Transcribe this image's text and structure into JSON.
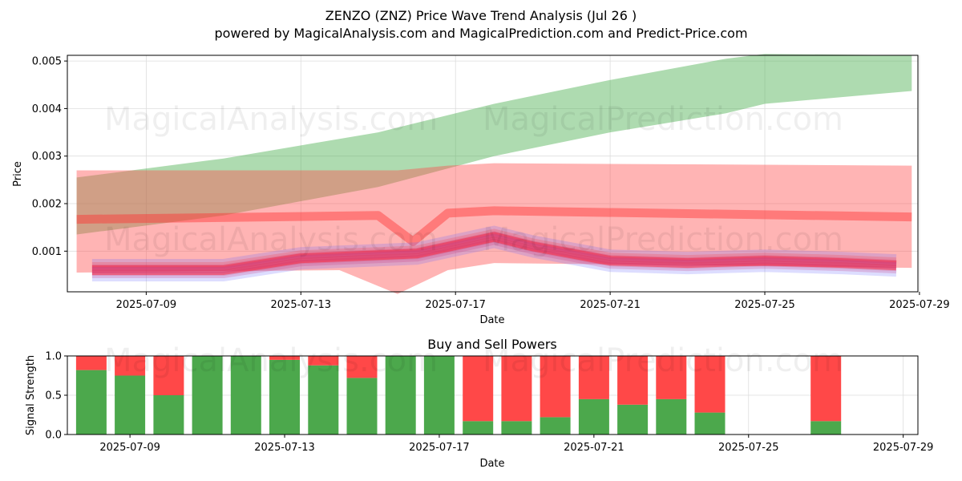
{
  "header": {
    "title": "ZENZO (ZNZ) Price Wave Trend Analysis (Jul 26 )",
    "subtitle": "powered by MagicalAnalysis.com and MagicalPrediction.com and Predict-Price.com"
  },
  "watermarks": [
    "MagicalAnalysis.com",
    "MagicalPrediction.com"
  ],
  "colors": {
    "upper_band": "#4caf50",
    "lower_band": "#ff4d4d",
    "wave_red": "#ff3333",
    "wave_blue": "#6666ff",
    "wave_magenta": "#dd2255",
    "buy": "#4ca84c",
    "sell": "#ff4848",
    "grid": "#dddddd"
  },
  "chart_data": [
    {
      "type": "area",
      "title": "",
      "xlabel": "Date",
      "ylabel": "Price",
      "x_ticks": [
        "2025-07-09",
        "2025-07-13",
        "2025-07-17",
        "2025-07-21",
        "2025-07-25",
        "2025-07-29"
      ],
      "y_ticks": [
        "0.001",
        "0.002",
        "0.003",
        "0.004",
        "0.005"
      ],
      "xlim": [
        "2025-07-06.96",
        "2025-07-28.96"
      ],
      "ylim": [
        0.000145,
        0.00512
      ],
      "grid": true,
      "series": [
        {
          "kind": "band",
          "color": "green",
          "x": [
            "2025-07-07.2",
            "2025-07-11",
            "2025-07-15",
            "2025-07-18",
            "2025-07-21",
            "2025-07-24",
            "2025-07-25",
            "2025-07-28.8"
          ],
          "upper": [
            0.00255,
            0.00295,
            0.0035,
            0.0041,
            0.0046,
            0.00505,
            0.00515,
            0.00512
          ],
          "lower": [
            0.00135,
            0.00175,
            0.00235,
            0.003,
            0.0035,
            0.0039,
            0.0041,
            0.00437
          ]
        },
        {
          "kind": "band",
          "color": "red",
          "x": [
            "2025-07-07.2",
            "2025-07-14",
            "2025-07-15.5",
            "2025-07-16.8",
            "2025-07-18",
            "2025-07-28.8"
          ],
          "upper": [
            0.0027,
            0.0027,
            0.0027,
            0.0028,
            0.00285,
            0.0028
          ],
          "lower": [
            0.00055,
            0.0006,
            0.0001,
            0.0006,
            0.00075,
            0.00065
          ]
        },
        {
          "kind": "line",
          "color": "red",
          "x": [
            "2025-07-07.2",
            "2025-07-15",
            "2025-07-15.9",
            "2025-07-16.8",
            "2025-07-18",
            "2025-07-28.8"
          ],
          "y": [
            0.00167,
            0.00175,
            0.0012,
            0.0018,
            0.00185,
            0.00172
          ]
        },
        {
          "kind": "wave",
          "color": "magenta",
          "x": [
            "2025-07-07.6",
            "2025-07-11",
            "2025-07-13",
            "2025-07-16",
            "2025-07-18",
            "2025-07-19",
            "2025-07-21",
            "2025-07-23",
            "2025-07-25",
            "2025-07-27",
            "2025-07-28.4"
          ],
          "y": [
            0.0006,
            0.0006,
            0.00085,
            0.00095,
            0.0013,
            0.0011,
            0.0008,
            0.00075,
            0.0008,
            0.00075,
            0.0007
          ]
        }
      ]
    },
    {
      "type": "bar",
      "title": "Buy and Sell Powers",
      "xlabel": "Date",
      "ylabel": "Signal Strength",
      "x_ticks": [
        "2025-07-09",
        "2025-07-13",
        "2025-07-17",
        "2025-07-21",
        "2025-07-25",
        "2025-07-29"
      ],
      "y_ticks": [
        "0.0",
        "0.5",
        "1.0"
      ],
      "ylim": [
        0,
        1
      ],
      "grid": true,
      "categories": [
        "2025-07-08",
        "2025-07-09",
        "2025-07-10",
        "2025-07-11",
        "2025-07-12",
        "2025-07-13",
        "2025-07-14",
        "2025-07-15",
        "2025-07-16",
        "2025-07-17",
        "2025-07-18",
        "2025-07-19",
        "2025-07-20",
        "2025-07-21",
        "2025-07-22",
        "2025-07-23",
        "2025-07-24",
        "2025-07-27"
      ],
      "series": [
        {
          "values": [
            0.82,
            0.75,
            0.5,
            1.0,
            1.0,
            0.95,
            0.88,
            0.72,
            1.0,
            1.0,
            0.17,
            0.17,
            0.22,
            0.45,
            0.38,
            0.45,
            0.28,
            0.17
          ]
        },
        {
          "values": [
            0.18,
            0.25,
            0.5,
            0.0,
            0.0,
            0.05,
            0.12,
            0.28,
            0.0,
            0.0,
            0.83,
            0.83,
            0.78,
            0.55,
            0.62,
            0.55,
            0.72,
            0.83
          ]
        }
      ]
    }
  ]
}
